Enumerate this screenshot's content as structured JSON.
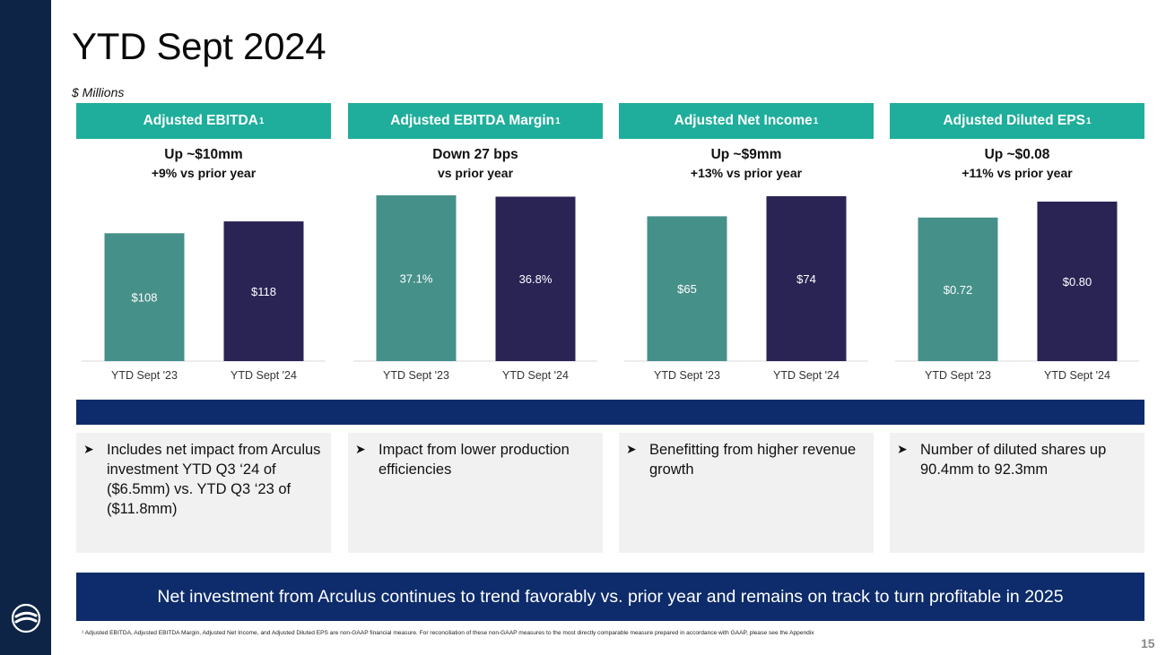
{
  "title": "YTD Sept 2024",
  "units": "$ Millions",
  "colors": {
    "prior": "#46908a",
    "current": "#2a2455",
    "header": "#1fae9b",
    "navy": "#0e2c6b",
    "band": "#0e2447"
  },
  "chart_data": [
    {
      "type": "bar",
      "title": "Adjusted EBITDA",
      "title_sup": "1",
      "change_line1": "Up ~$10mm",
      "change_line2": "+9% vs prior year",
      "categories": [
        "YTD Sept '23",
        "YTD Sept '24"
      ],
      "values": [
        108,
        118
      ],
      "labels": [
        "$108",
        "$118"
      ],
      "ylim": [
        0,
        140
      ]
    },
    {
      "type": "bar",
      "title": "Adjusted EBITDA Margin",
      "title_sup": "1",
      "change_line1": "Down 27 bps",
      "change_line2": "vs prior year",
      "categories": [
        "YTD Sept '23",
        "YTD Sept '24"
      ],
      "values": [
        37.1,
        36.8
      ],
      "labels": [
        "37.1%",
        "36.8%"
      ],
      "ylim": [
        0,
        37.1
      ]
    },
    {
      "type": "bar",
      "title": "Adjusted Net Income",
      "title_sup": "1",
      "change_line1": "Up ~$9mm",
      "change_line2": "+13% vs prior year",
      "categories": [
        "YTD Sept '23",
        "YTD Sept '24"
      ],
      "values": [
        65,
        74
      ],
      "labels": [
        "$65",
        "$74"
      ],
      "ylim": [
        0,
        74
      ]
    },
    {
      "type": "bar",
      "title": "Adjusted Diluted EPS",
      "title_sup": "1",
      "change_line1": "Up ~$0.08",
      "change_line2": "+11% vs prior year",
      "categories": [
        "YTD Sept '23",
        "YTD Sept '24"
      ],
      "values": [
        0.72,
        0.8
      ],
      "labels": [
        "$0.72",
        "$0.80"
      ],
      "ylim": [
        0,
        0.8
      ]
    }
  ],
  "notes": [
    "Includes net impact from Arculus investment YTD Q3 ‘24 of ($6.5mm) vs. YTD Q3 ‘23 of ($11.8mm)",
    "Impact from lower production efficiencies",
    "Benefitting from higher revenue growth",
    "Number of diluted shares up 90.4mm to 92.3mm"
  ],
  "note_bullet": "➤",
  "banner": "Net investment from Arculus continues to trend favorably vs. prior year and remains on track to turn profitable in 2025",
  "footnote": "¹ Adjusted EBITDA, Adjusted EBITDA Margin, Adjusted Net Income, and Adjusted Diluted EPS are non-GAAP financial measure.  For reconciliation of these non-GAAP measures to the most directly comparable measure prepared in accordance with GAAP, please see the Appendix",
  "page_number": "15"
}
